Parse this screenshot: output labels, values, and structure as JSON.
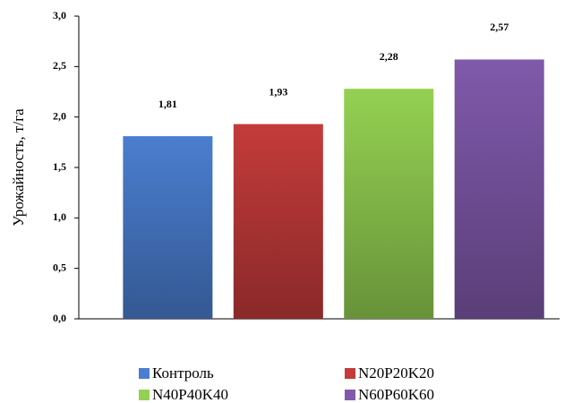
{
  "chart_data": {
    "type": "bar",
    "y_label": "Урожайность, т/га",
    "series": [
      {
        "name": "Контроль",
        "color": "#4a7ed0",
        "values": [
          1.81
        ],
        "value_labels": [
          "1,81"
        ]
      },
      {
        "name": "N20P20K20",
        "color": "#c43b3a",
        "values": [
          1.93
        ],
        "value_labels": [
          "1,93"
        ]
      },
      {
        "name": "N40P40K40",
        "color": "#94d152",
        "values": [
          2.28
        ],
        "value_labels": [
          "2,28"
        ]
      },
      {
        "name": "N60P60K60",
        "color": "#8059ab",
        "values": [
          2.57
        ],
        "value_labels": [
          "2,57"
        ]
      }
    ],
    "ylim": [
      0,
      3
    ],
    "yticks": [
      {
        "value": 0,
        "label": "0,0"
      },
      {
        "value": 0.5,
        "label": "0,5"
      },
      {
        "value": 1,
        "label": "1,0"
      },
      {
        "value": 1.5,
        "label": "1,5"
      },
      {
        "value": 2,
        "label": "2,0"
      },
      {
        "value": 2.5,
        "label": "2,5"
      },
      {
        "value": 3,
        "label": "3,0"
      }
    ],
    "legend": "bottom"
  }
}
